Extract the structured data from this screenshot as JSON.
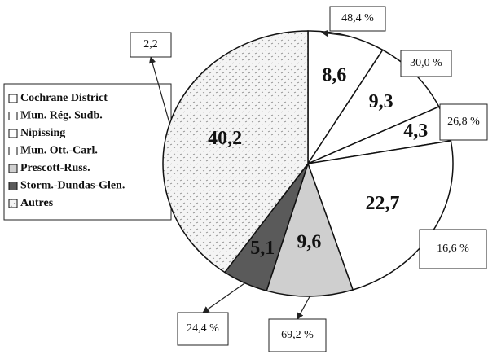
{
  "chart_data": {
    "type": "pie",
    "categories": [
      "Cochrane District",
      "Mun. Rég. Sudb.",
      "Nipissing",
      "Mun. Ott.-Carl.",
      "Prescott-Russ.",
      "Storm.-Dundas-Glen.",
      "Autres"
    ],
    "values": [
      8.6,
      9.3,
      4.3,
      22.7,
      9.6,
      5.1,
      40.2
    ],
    "value_labels": [
      "8,6",
      "9,3",
      "4,3",
      "22,7",
      "9,6",
      "5,1",
      "40,2"
    ],
    "colors": [
      "#ffffff",
      "#ffffff",
      "#ffffff",
      "#ffffff",
      "#cfcfcf",
      "#5a5a5a",
      "#f2f2f2"
    ],
    "shares": {
      "values": [
        48.4,
        30.0,
        26.8,
        16.6,
        69.2,
        24.4,
        2.2
      ],
      "value_labels": [
        "48,4 %",
        "30,0 %",
        "26,8 %",
        "16,6 %",
        "69,2 %",
        "24,4 %",
        "2,2"
      ]
    }
  }
}
